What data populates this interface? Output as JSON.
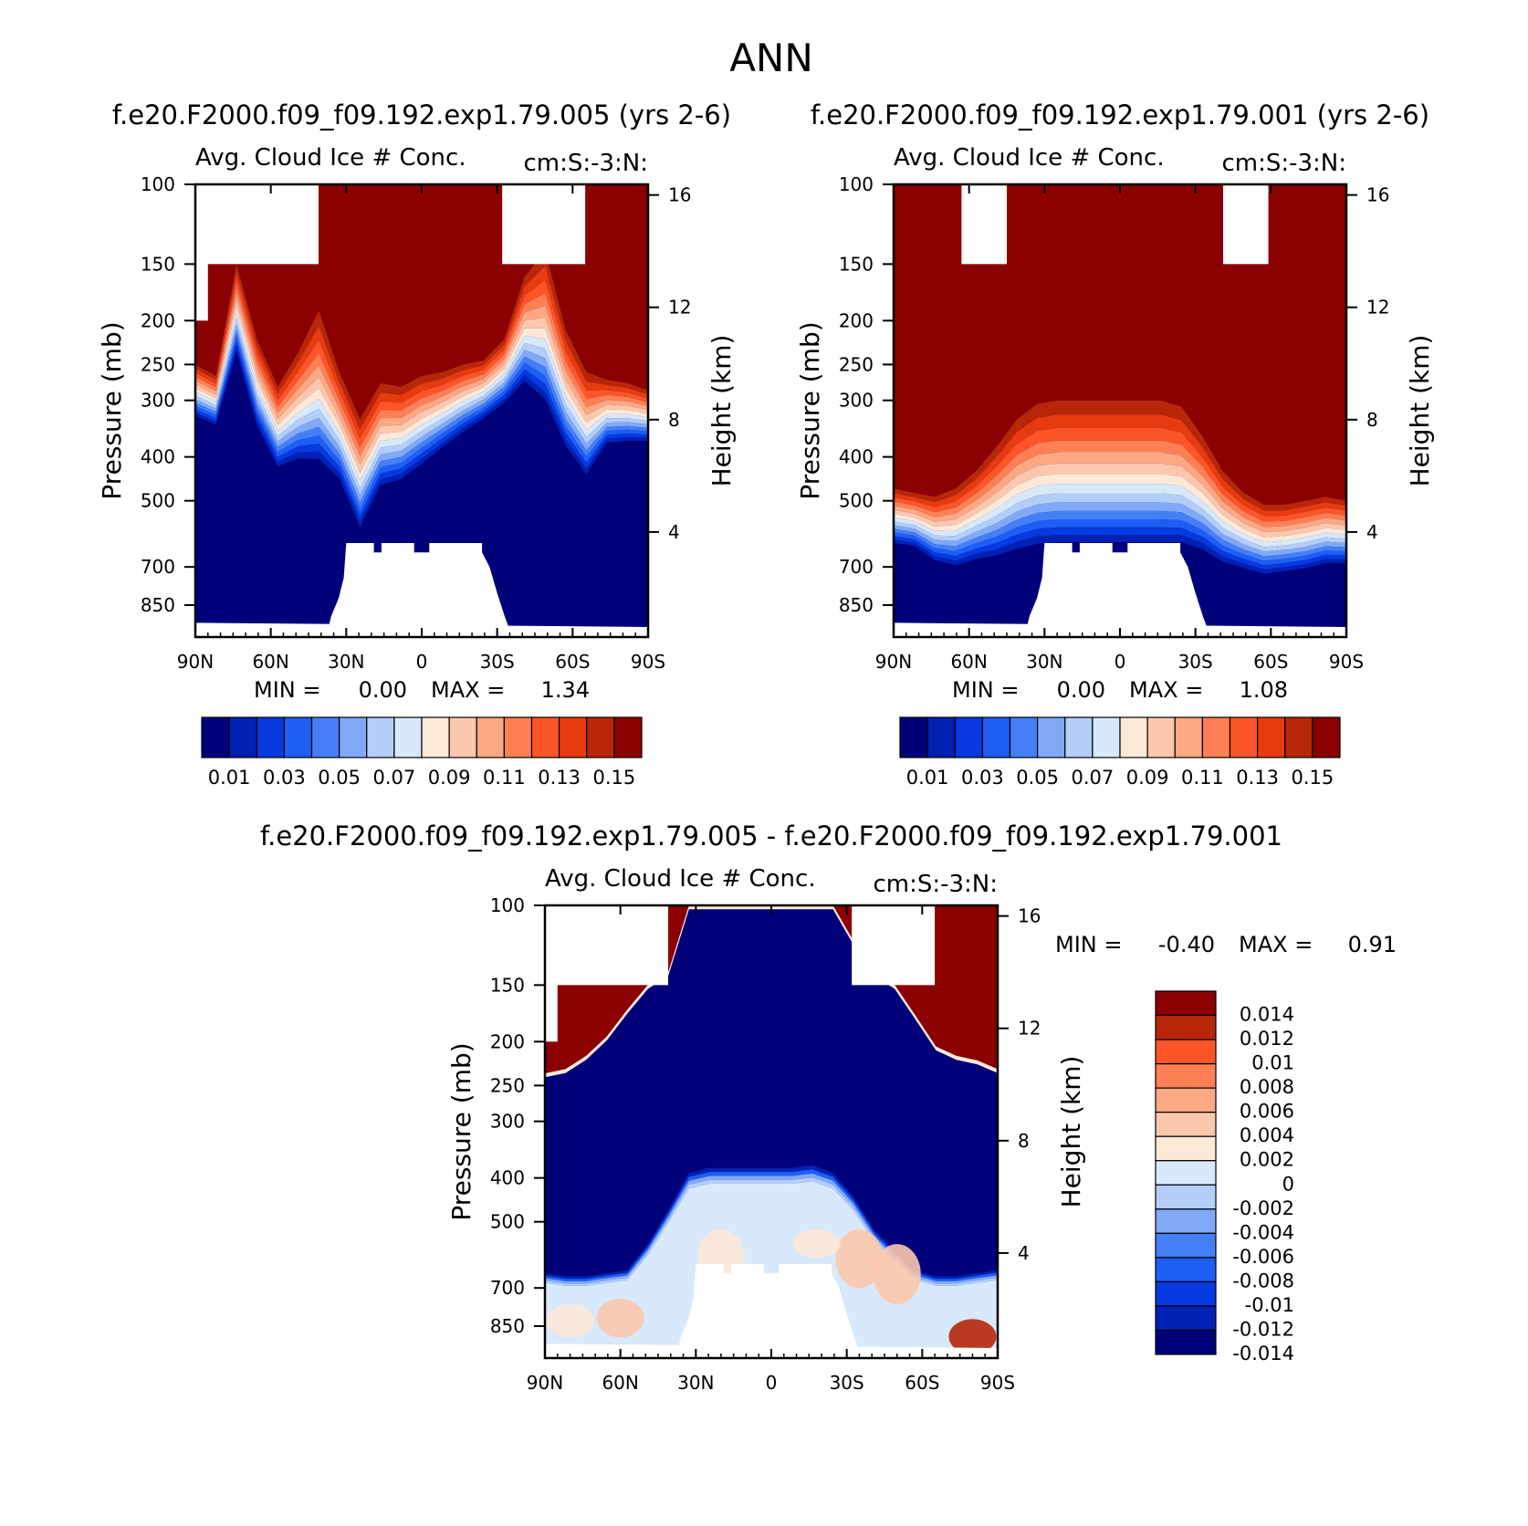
{
  "page_title": "ANN",
  "colors": {
    "scale_top": [
      "#00007a",
      "#0021b3",
      "#0639e0",
      "#1e5ef5",
      "#457ff7",
      "#80aaf8",
      "#b3cef9",
      "#d8e9fb",
      "#fde9d8",
      "#fcc8ad",
      "#fca883",
      "#fd8055",
      "#fd5528",
      "#e73a0e",
      "#b82608",
      "#8b0000"
    ],
    "scale_diff": [
      "#00007a",
      "#0021b3",
      "#0639e0",
      "#1e5ef5",
      "#457ff7",
      "#80aaf8",
      "#b3cef9",
      "#d8e9fb",
      "#fde9d8",
      "#fcc8ad",
      "#fca883",
      "#fd8055",
      "#fd5528",
      "#b82608",
      "#8b0000"
    ]
  },
  "chart_data": [
    {
      "type": "heatmap",
      "title": "f.e20.F2000.f09_f09.192.exp1.79.005 (yrs 2-6)",
      "subtitle_left": "Avg. Cloud Ice # Conc.",
      "subtitle_right": "cm:S:-3:N:",
      "xlabel": "",
      "ylabel": "Pressure (mb)",
      "ylabel_right": "Height (km)",
      "x_ticks": [
        "90N",
        "60N",
        "30N",
        "0",
        "30S",
        "60S",
        "90S"
      ],
      "y_ticks": [
        "100",
        "150",
        "200",
        "250",
        "300",
        "400",
        "500",
        "700",
        "850"
      ],
      "y_ticks_right": [
        "16",
        "12",
        "8",
        "4"
      ],
      "min_label": "MIN =",
      "min_value": "0.00",
      "max_label": "MAX =",
      "max_value": "1.34",
      "colorbar_labels": [
        "0.01",
        "0.03",
        "0.05",
        "0.07",
        "0.09",
        "0.11",
        "0.13",
        "0.15"
      ],
      "levels": [
        0.01,
        0.02,
        0.03,
        0.04,
        0.05,
        0.06,
        0.07,
        0.08,
        0.09,
        0.1,
        0.11,
        0.12,
        0.13,
        0.14,
        0.15
      ],
      "scale_top_mb": [
        250,
        265,
        150,
        220,
        280,
        235,
        190,
        260,
        330,
        275,
        280,
        265,
        260,
        250,
        245,
        220,
        160,
        140,
        210,
        260,
        270,
        275,
        285
      ],
      "scale_transition_mb": [
        80,
        80,
        90,
        130,
        150,
        180,
        230,
        200,
        260,
        200,
        180,
        160,
        130,
        110,
        90,
        90,
        120,
        170,
        180,
        190,
        110,
        100,
        90
      ],
      "blank_surface_lat": [
        -28,
        17
      ]
    },
    {
      "type": "heatmap",
      "title": "f.e20.F2000.f09_f09.192.exp1.79.001 (yrs 2-6)",
      "subtitle_left": "Avg. Cloud Ice # Conc.",
      "subtitle_right": "cm:S:-3:N:",
      "xlabel": "",
      "ylabel": "Pressure (mb)",
      "ylabel_right": "Height (km)",
      "x_ticks": [
        "90N",
        "60N",
        "30N",
        "0",
        "30S",
        "60S",
        "90S"
      ],
      "y_ticks": [
        "100",
        "150",
        "200",
        "250",
        "300",
        "400",
        "500",
        "700",
        "850"
      ],
      "y_ticks_right": [
        "16",
        "12",
        "8",
        "4"
      ],
      "min_label": "MIN =",
      "min_value": "0.00",
      "max_label": "MAX =",
      "max_value": "1.08",
      "colorbar_labels": [
        "0.01",
        "0.03",
        "0.05",
        "0.07",
        "0.09",
        "0.11",
        "0.13",
        "0.15"
      ],
      "levels": [
        0.01,
        0.02,
        0.03,
        0.04,
        0.05,
        0.06,
        0.07,
        0.08,
        0.09,
        0.1,
        0.11,
        0.12,
        0.13,
        0.14,
        0.15
      ],
      "scale_top_mb": [
        470,
        480,
        490,
        470,
        430,
        380,
        330,
        305,
        300,
        300,
        300,
        300,
        300,
        300,
        310,
        360,
        430,
        480,
        510,
        510,
        500,
        490,
        500
      ],
      "scale_transition_mb": [
        160,
        160,
        200,
        240,
        260,
        300,
        330,
        340,
        340,
        340,
        340,
        340,
        340,
        340,
        330,
        300,
        270,
        240,
        230,
        220,
        220,
        210,
        200
      ],
      "blank_surface_lat": [
        -28,
        17
      ]
    },
    {
      "type": "heatmap",
      "title": "f.e20.F2000.f09_f09.192.exp1.79.005 - f.e20.F2000.f09_f09.192.exp1.79.001",
      "subtitle_left": "Avg. Cloud Ice # Conc.",
      "subtitle_right": "cm:S:-3:N:",
      "xlabel": "",
      "ylabel": "Pressure (mb)",
      "ylabel_right": "Height (km)",
      "x_ticks": [
        "90N",
        "60N",
        "30N",
        "0",
        "30S",
        "60S",
        "90S"
      ],
      "y_ticks": [
        "100",
        "150",
        "200",
        "250",
        "300",
        "400",
        "500",
        "700",
        "850"
      ],
      "y_ticks_right": [
        "16",
        "12",
        "8",
        "4"
      ],
      "min_label": "MIN =",
      "min_value": "-0.40",
      "max_label": "MAX =",
      "max_value": "0.91",
      "colorbar_labels": [
        "0.014",
        "0.012",
        "0.01",
        "0.008",
        "0.006",
        "0.004",
        "0.002",
        "0",
        "-0.002",
        "-0.004",
        "-0.006",
        "-0.008",
        "-0.01",
        "-0.012",
        "-0.014"
      ],
      "levels": [
        -0.014,
        -0.012,
        -0.01,
        -0.008,
        -0.006,
        -0.004,
        -0.002,
        0,
        0.002,
        0.004,
        0.006,
        0.008,
        0.01,
        0.012,
        0.014
      ],
      "upper_positive_boundary_mb": [
        235,
        230,
        215,
        195,
        170,
        150,
        140,
        100,
        100,
        100,
        100,
        100,
        100,
        100,
        100,
        120,
        140,
        150,
        175,
        205,
        215,
        220,
        230
      ],
      "lower_neutral_top_mb": [
        650,
        660,
        660,
        650,
        640,
        560,
        470,
        390,
        380,
        380,
        380,
        380,
        380,
        375,
        390,
        440,
        520,
        580,
        640,
        660,
        660,
        650,
        640
      ],
      "blank_surface_lat": [
        -28,
        17
      ]
    }
  ]
}
